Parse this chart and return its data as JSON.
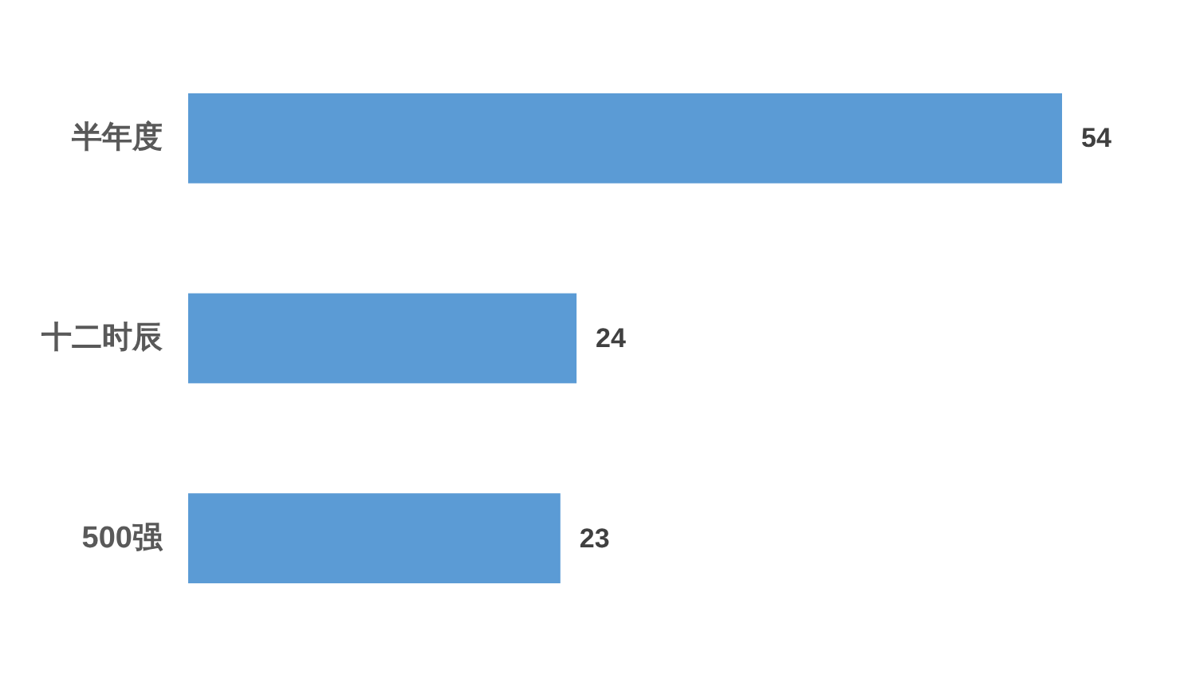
{
  "chart_data": {
    "type": "bar",
    "orientation": "horizontal",
    "categories": [
      "半年度",
      "十二时辰",
      "500强"
    ],
    "values": [
      54,
      24,
      23
    ],
    "color": "#5b9bd5",
    "data_labels": true
  }
}
